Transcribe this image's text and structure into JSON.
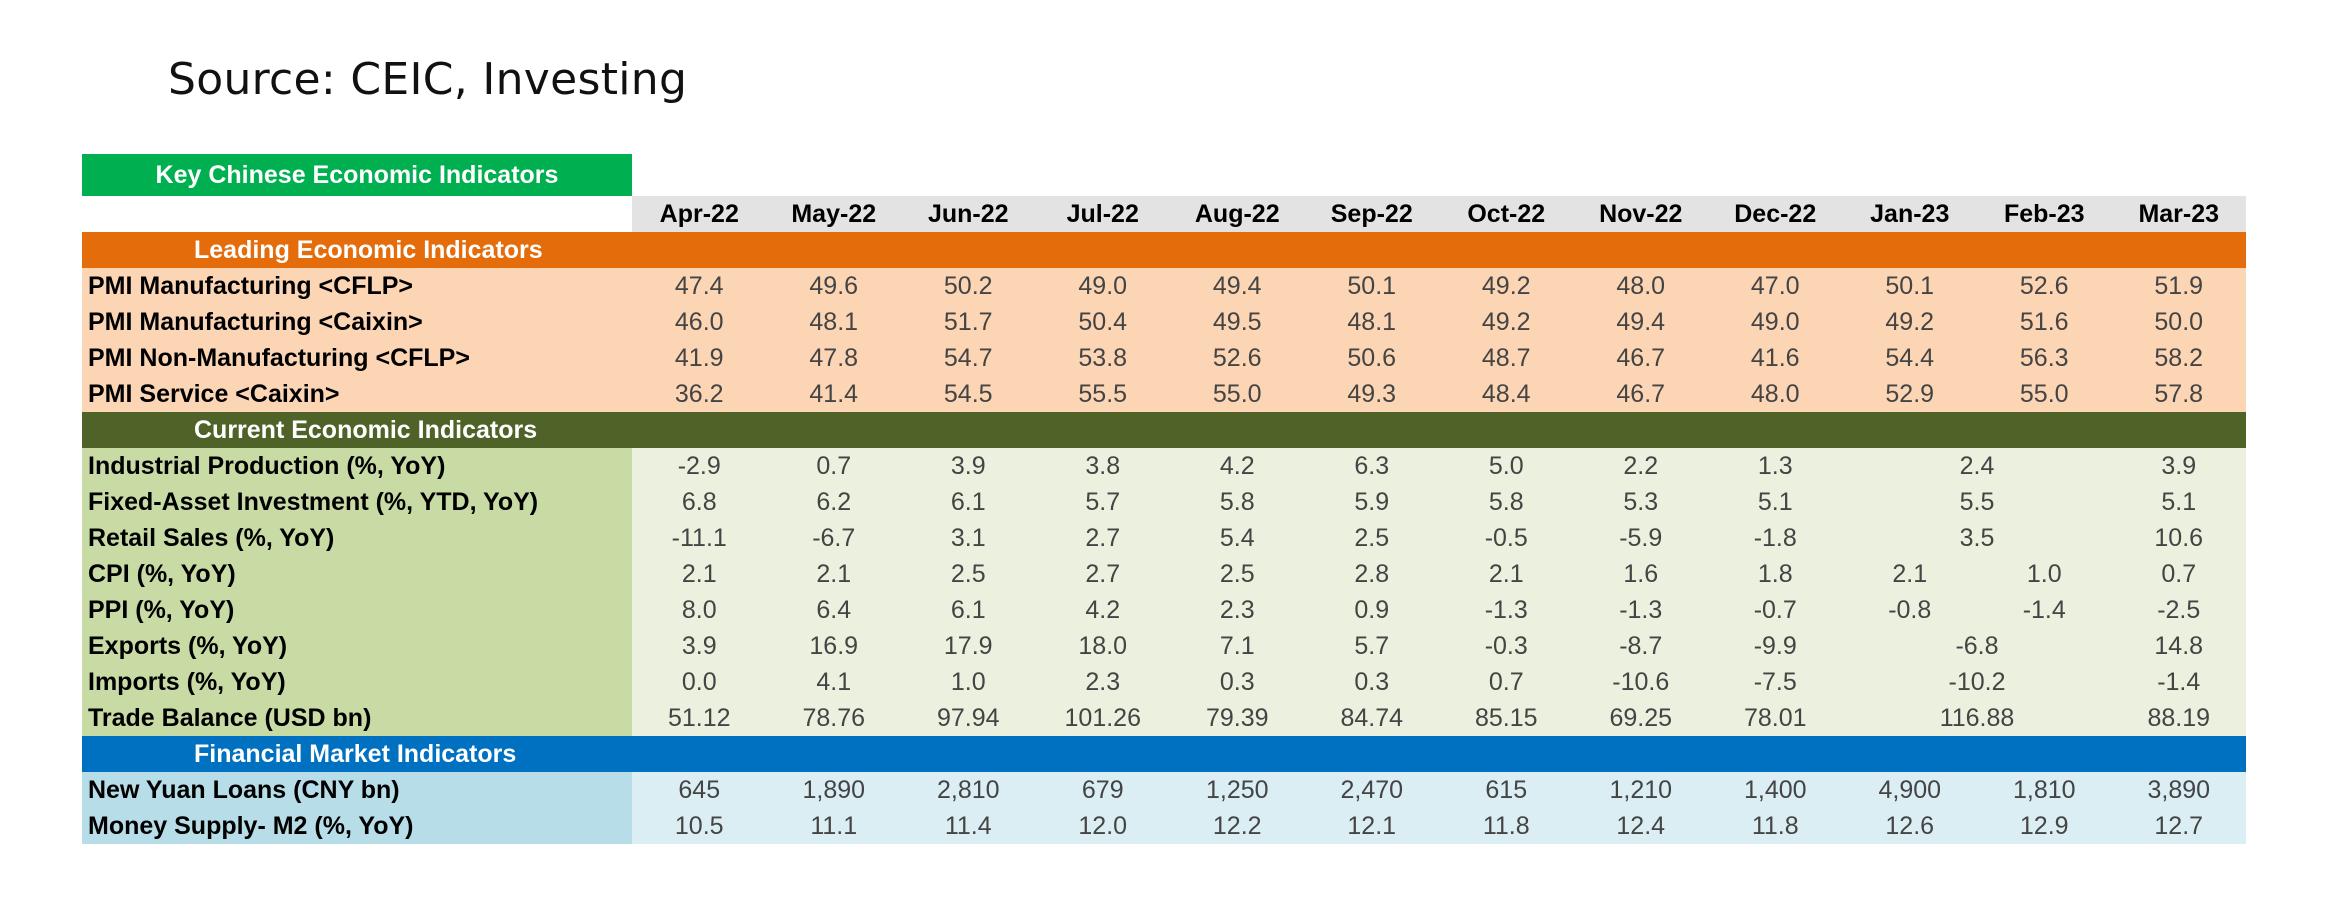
{
  "source": "Source: CEIC, Investing",
  "chart_data": {
    "type": "table",
    "title": "Key Chinese Economic Indicators",
    "columns": [
      "Apr-22",
      "May-22",
      "Jun-22",
      "Jul-22",
      "Aug-22",
      "Sep-22",
      "Oct-22",
      "Nov-22",
      "Dec-22",
      "Jan-23",
      "Feb-23",
      "Mar-23"
    ],
    "sections": [
      {
        "name": "Leading Economic Indicators",
        "rows": [
          {
            "label": "PMI Manufacturing <CFLP>",
            "values": [
              "47.4",
              "49.6",
              "50.2",
              "49.0",
              "49.4",
              "50.1",
              "49.2",
              "48.0",
              "47.0",
              "50.1",
              "52.6",
              "51.9"
            ]
          },
          {
            "label": "PMI Manufacturing <Caixin>",
            "values": [
              "46.0",
              "48.1",
              "51.7",
              "50.4",
              "49.5",
              "48.1",
              "49.2",
              "49.4",
              "49.0",
              "49.2",
              "51.6",
              "50.0"
            ]
          },
          {
            "label": "PMI Non-Manufacturing <CFLP>",
            "values": [
              "41.9",
              "47.8",
              "54.7",
              "53.8",
              "52.6",
              "50.6",
              "48.7",
              "46.7",
              "41.6",
              "54.4",
              "56.3",
              "58.2"
            ]
          },
          {
            "label": "PMI Service <Caixin>",
            "values": [
              "36.2",
              "41.4",
              "54.5",
              "55.5",
              "55.0",
              "49.3",
              "48.4",
              "46.7",
              "48.0",
              "52.9",
              "55.0",
              "57.8"
            ]
          }
        ]
      },
      {
        "name": "Current Economic Indicators",
        "rows": [
          {
            "label": "Industrial Production (%, YoY)",
            "values": [
              "-2.9",
              "0.7",
              "3.9",
              "3.8",
              "4.2",
              "6.3",
              "5.0",
              "2.2",
              "1.3",
              "2.4",
              null,
              "3.9"
            ]
          },
          {
            "label": "Fixed-Asset Investment (%, YTD, YoY)",
            "values": [
              "6.8",
              "6.2",
              "6.1",
              "5.7",
              "5.8",
              "5.9",
              "5.8",
              "5.3",
              "5.1",
              "5.5",
              null,
              "5.1"
            ]
          },
          {
            "label": "Retail Sales (%, YoY)",
            "values": [
              "-11.1",
              "-6.7",
              "3.1",
              "2.7",
              "5.4",
              "2.5",
              "-0.5",
              "-5.9",
              "-1.8",
              "3.5",
              null,
              "10.6"
            ]
          },
          {
            "label": "CPI (%, YoY)",
            "values": [
              "2.1",
              "2.1",
              "2.5",
              "2.7",
              "2.5",
              "2.8",
              "2.1",
              "1.6",
              "1.8",
              "2.1",
              "1.0",
              "0.7"
            ]
          },
          {
            "label": "PPI (%, YoY)",
            "values": [
              "8.0",
              "6.4",
              "6.1",
              "4.2",
              "2.3",
              "0.9",
              "-1.3",
              "-1.3",
              "-0.7",
              "-0.8",
              "-1.4",
              "-2.5"
            ]
          },
          {
            "label": "Exports (%, YoY)",
            "values": [
              "3.9",
              "16.9",
              "17.9",
              "18.0",
              "7.1",
              "5.7",
              "-0.3",
              "-8.7",
              "-9.9",
              "-6.8",
              null,
              "14.8"
            ]
          },
          {
            "label": "Imports (%, YoY)",
            "values": [
              "0.0",
              "4.1",
              "1.0",
              "2.3",
              "0.3",
              "0.3",
              "0.7",
              "-10.6",
              "-7.5",
              "-10.2",
              null,
              "-1.4"
            ]
          },
          {
            "label": "Trade Balance (USD bn)",
            "values": [
              "51.12",
              "78.76",
              "97.94",
              "101.26",
              "79.39",
              "84.74",
              "85.15",
              "69.25",
              "78.01",
              "116.88",
              null,
              "88.19"
            ]
          }
        ]
      },
      {
        "name": "Financial Market Indicators",
        "rows": [
          {
            "label": "New Yuan Loans (CNY bn)",
            "values": [
              "645",
              "1,890",
              "2,810",
              "679",
              "1,250",
              "2,470",
              "615",
              "1,210",
              "1,400",
              "4,900",
              "1,810",
              "3,890"
            ]
          },
          {
            "label": "Money Supply- M2 (%, YoY)",
            "values": [
              "10.5",
              "11.1",
              "11.4",
              "12.0",
              "12.2",
              "12.1",
              "11.8",
              "12.4",
              "11.8",
              "12.6",
              "12.9",
              "12.7"
            ]
          }
        ]
      }
    ],
    "notes": "null in Feb-23 means the Jan-23 value is a combined Jan-Feb figure spanning both columns"
  },
  "colors": {
    "title_bg": "#00b050",
    "header_bg": "#e3e3e3",
    "leading_header": "#e46c0a",
    "leading_body": "#fcd5b5",
    "current_header": "#4f6228",
    "current_label": "#c9dba4",
    "current_body": "#ebf1de",
    "financial_header": "#0070c0",
    "financial_label": "#b7dde8",
    "financial_body": "#dbeef3"
  }
}
